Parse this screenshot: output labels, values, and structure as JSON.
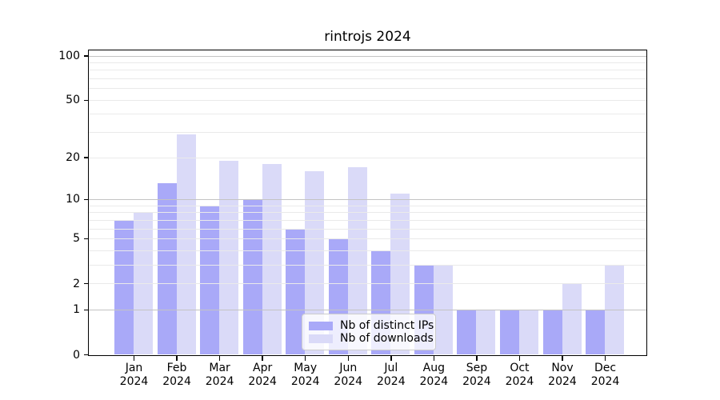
{
  "chart_data": {
    "type": "bar",
    "title": "rintrojs 2024",
    "categories": [
      "Jan",
      "Feb",
      "Mar",
      "Apr",
      "May",
      "Jun",
      "Jul",
      "Aug",
      "Sep",
      "Oct",
      "Nov",
      "Dec"
    ],
    "category_year": "2024",
    "series": [
      {
        "name": "Nb of distinct IPs",
        "color": "#a9a9f8",
        "values": [
          7,
          13,
          9,
          10,
          6,
          5,
          4,
          3,
          1,
          1,
          1,
          1
        ]
      },
      {
        "name": "Nb of downloads",
        "color": "#dadaf8",
        "values": [
          8,
          29,
          19,
          18,
          16,
          17,
          11,
          3,
          1,
          1,
          2,
          3
        ]
      }
    ],
    "xlabel": "",
    "ylabel": "",
    "yscale": "log1p",
    "ylim": [
      0,
      100
    ],
    "ytick_labels": [
      "0",
      "1",
      "2",
      "5",
      "10",
      "20",
      "50",
      "100"
    ],
    "ytick_values": [
      0,
      1,
      2,
      5,
      10,
      20,
      50,
      100
    ],
    "major_gridlines": [
      1,
      10,
      100
    ],
    "minor_gridlines": [
      2,
      3,
      4,
      5,
      6,
      7,
      8,
      9,
      20,
      30,
      40,
      50,
      60,
      70,
      80,
      90
    ],
    "grid": true,
    "legend_position": "inside lower-center"
  },
  "colors": {
    "background": "#ffffff",
    "axis": "#000000",
    "major_grid": "#c3c3c3",
    "minor_grid": "#eaeaea",
    "legend_border": "#cccccc"
  }
}
